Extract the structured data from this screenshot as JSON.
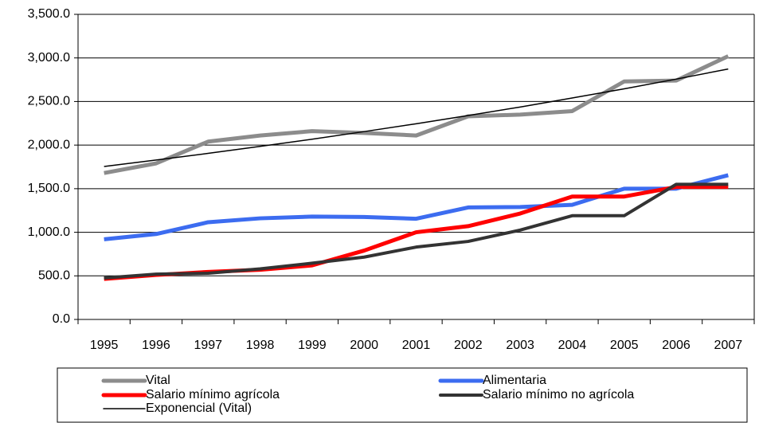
{
  "chart_data": {
    "type": "line",
    "categories": [
      "1995",
      "1996",
      "1997",
      "1998",
      "1999",
      "2000",
      "2001",
      "2002",
      "2003",
      "2004",
      "2005",
      "2006",
      "2007"
    ],
    "series": [
      {
        "name": "Vital",
        "color": "#8c8c8c",
        "values": [
          1680,
          1790,
          2040,
          2110,
          2160,
          2140,
          2110,
          2330,
          2350,
          2390,
          2730,
          2740,
          3020
        ]
      },
      {
        "name": "Alimentaria",
        "color": "#3c6cf0",
        "values": [
          920,
          980,
          1115,
          1160,
          1180,
          1175,
          1155,
          1285,
          1290,
          1315,
          1500,
          1500,
          1655
        ]
      },
      {
        "name": "Salario mínimo agrícola",
        "color": "#ff0000",
        "values": [
          465,
          510,
          545,
          570,
          620,
          790,
          1000,
          1070,
          1215,
          1410,
          1410,
          1520,
          1520
        ]
      },
      {
        "name": "Salario mínimo no agrícola",
        "color": "#333333",
        "values": [
          475,
          520,
          530,
          580,
          645,
          715,
          830,
          895,
          1025,
          1190,
          1190,
          1550,
          1550
        ]
      },
      {
        "name": "Exponencial (Vital)",
        "color": "#000000",
        "values": [
          1755,
          1829,
          1905,
          1985,
          2068,
          2155,
          2245,
          2339,
          2437,
          2540,
          2646,
          2757,
          2873
        ]
      }
    ],
    "ylim": [
      0,
      3500
    ],
    "yticks": [
      {
        "value": 0,
        "label": "0.0"
      },
      {
        "value": 500,
        "label": "500.0"
      },
      {
        "value": 1000,
        "label": "1,000.0"
      },
      {
        "value": 1500,
        "label": "1,500.0"
      },
      {
        "value": 2000,
        "label": "2,000.0"
      },
      {
        "value": 2500,
        "label": "2,500.0"
      },
      {
        "value": 3000,
        "label": "3,000.0"
      },
      {
        "value": 3500,
        "label": "3,500.0"
      }
    ],
    "grid": true
  }
}
